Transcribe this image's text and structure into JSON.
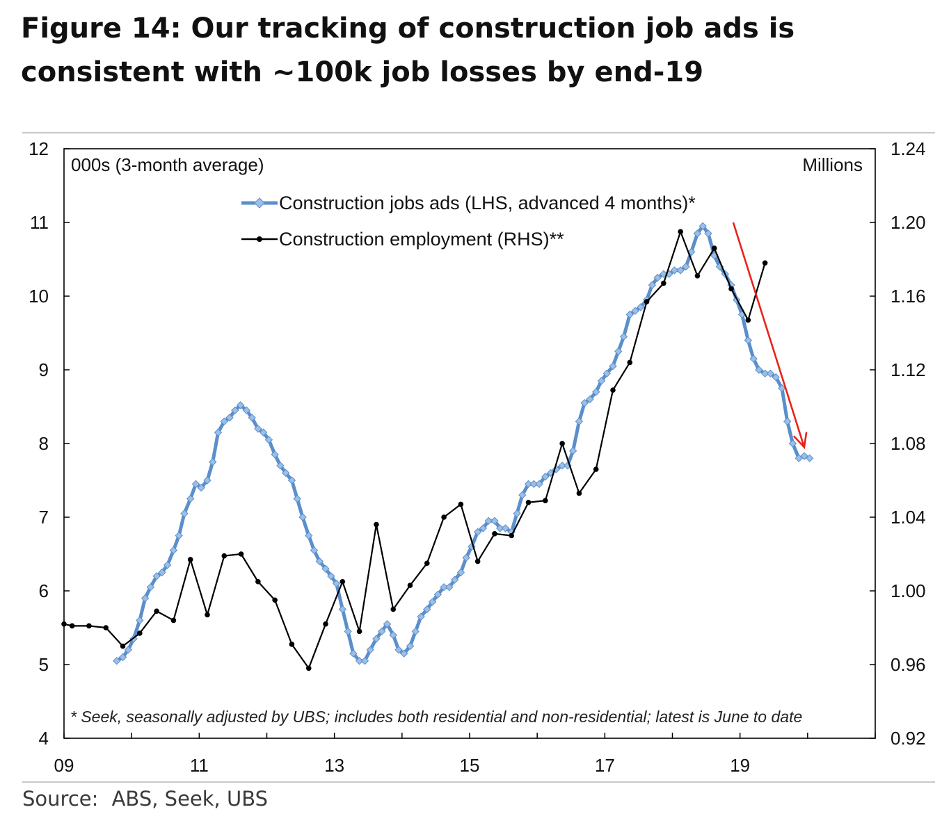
{
  "figure_label": "Figure 14:",
  "title_line1": "Our tracking of construction job ads is",
  "title_line2": "consistent with ~100k job losses by end-19",
  "source_label": "Source:",
  "source_text": "ABS, Seek, UBS",
  "colors": {
    "ads": "#5b8fcb",
    "ads_marker": "#9dbfe6",
    "employment": "#000000",
    "arrow": "#e8231a",
    "axis": "#000000"
  },
  "chart_data": {
    "type": "line",
    "left_unit": "000s (3-month average)",
    "right_unit": "Millions",
    "left_ylim": [
      4,
      12
    ],
    "right_ylim": [
      0.92,
      1.24
    ],
    "left_ticks": [
      "12",
      "11",
      "10",
      "9",
      "8",
      "7",
      "6",
      "5",
      "4"
    ],
    "right_ticks": [
      "1.24",
      "1.20",
      "1.16",
      "1.12",
      "1.08",
      "1.04",
      "1.00",
      "0.96",
      "0.92"
    ],
    "xlim": [
      2009.0,
      2021.0
    ],
    "x_ticks": [
      {
        "label": "09",
        "year": 2009
      },
      {
        "label": "11",
        "year": 2011
      },
      {
        "label": "13",
        "year": 2013
      },
      {
        "label": "15",
        "year": 2015
      },
      {
        "label": "17",
        "year": 2017
      },
      {
        "label": "19",
        "year": 2019
      }
    ],
    "series": [
      {
        "name": "Construction jobs ads (LHS, advanced 4 months)*",
        "axis": "left",
        "points": [
          [
            2009.78,
            5.05
          ],
          [
            2009.87,
            5.1
          ],
          [
            2009.95,
            5.2
          ],
          [
            2010.03,
            5.35
          ],
          [
            2010.12,
            5.6
          ],
          [
            2010.2,
            5.9
          ],
          [
            2010.28,
            6.05
          ],
          [
            2010.37,
            6.2
          ],
          [
            2010.45,
            6.25
          ],
          [
            2010.53,
            6.35
          ],
          [
            2010.62,
            6.55
          ],
          [
            2010.7,
            6.75
          ],
          [
            2010.78,
            7.05
          ],
          [
            2010.87,
            7.25
          ],
          [
            2010.95,
            7.45
          ],
          [
            2011.03,
            7.4
          ],
          [
            2011.12,
            7.5
          ],
          [
            2011.2,
            7.75
          ],
          [
            2011.28,
            8.15
          ],
          [
            2011.37,
            8.3
          ],
          [
            2011.45,
            8.35
          ],
          [
            2011.53,
            8.45
          ],
          [
            2011.61,
            8.52
          ],
          [
            2011.7,
            8.45
          ],
          [
            2011.78,
            8.35
          ],
          [
            2011.87,
            8.2
          ],
          [
            2011.95,
            8.15
          ],
          [
            2012.03,
            8.05
          ],
          [
            2012.12,
            7.85
          ],
          [
            2012.2,
            7.7
          ],
          [
            2012.28,
            7.6
          ],
          [
            2012.37,
            7.5
          ],
          [
            2012.45,
            7.25
          ],
          [
            2012.53,
            7.0
          ],
          [
            2012.62,
            6.75
          ],
          [
            2012.7,
            6.55
          ],
          [
            2012.78,
            6.4
          ],
          [
            2012.87,
            6.3
          ],
          [
            2012.95,
            6.2
          ],
          [
            2013.03,
            6.1
          ],
          [
            2013.12,
            5.75
          ],
          [
            2013.2,
            5.45
          ],
          [
            2013.28,
            5.15
          ],
          [
            2013.37,
            5.05
          ],
          [
            2013.45,
            5.05
          ],
          [
            2013.53,
            5.2
          ],
          [
            2013.62,
            5.35
          ],
          [
            2013.7,
            5.45
          ],
          [
            2013.78,
            5.55
          ],
          [
            2013.87,
            5.4
          ],
          [
            2013.95,
            5.2
          ],
          [
            2014.03,
            5.15
          ],
          [
            2014.12,
            5.25
          ],
          [
            2014.2,
            5.45
          ],
          [
            2014.28,
            5.65
          ],
          [
            2014.37,
            5.75
          ],
          [
            2014.45,
            5.85
          ],
          [
            2014.53,
            5.95
          ],
          [
            2014.62,
            6.05
          ],
          [
            2014.7,
            6.05
          ],
          [
            2014.78,
            6.15
          ],
          [
            2014.87,
            6.25
          ],
          [
            2014.95,
            6.45
          ],
          [
            2015.03,
            6.6
          ],
          [
            2015.12,
            6.8
          ],
          [
            2015.2,
            6.85
          ],
          [
            2015.28,
            6.95
          ],
          [
            2015.37,
            6.95
          ],
          [
            2015.45,
            6.85
          ],
          [
            2015.53,
            6.85
          ],
          [
            2015.62,
            6.8
          ],
          [
            2015.7,
            7.05
          ],
          [
            2015.78,
            7.3
          ],
          [
            2015.87,
            7.45
          ],
          [
            2015.95,
            7.45
          ],
          [
            2016.03,
            7.45
          ],
          [
            2016.12,
            7.55
          ],
          [
            2016.2,
            7.6
          ],
          [
            2016.28,
            7.65
          ],
          [
            2016.37,
            7.7
          ],
          [
            2016.45,
            7.7
          ],
          [
            2016.53,
            7.9
          ],
          [
            2016.62,
            8.3
          ],
          [
            2016.7,
            8.55
          ],
          [
            2016.78,
            8.6
          ],
          [
            2016.87,
            8.7
          ],
          [
            2016.95,
            8.85
          ],
          [
            2017.03,
            8.95
          ],
          [
            2017.12,
            9.05
          ],
          [
            2017.2,
            9.25
          ],
          [
            2017.28,
            9.45
          ],
          [
            2017.37,
            9.75
          ],
          [
            2017.45,
            9.8
          ],
          [
            2017.53,
            9.85
          ],
          [
            2017.62,
            9.95
          ],
          [
            2017.7,
            10.15
          ],
          [
            2017.78,
            10.25
          ],
          [
            2017.87,
            10.3
          ],
          [
            2017.95,
            10.3
          ],
          [
            2018.03,
            10.35
          ],
          [
            2018.12,
            10.35
          ],
          [
            2018.2,
            10.4
          ],
          [
            2018.28,
            10.6
          ],
          [
            2018.37,
            10.85
          ],
          [
            2018.45,
            10.95
          ],
          [
            2018.53,
            10.85
          ],
          [
            2018.62,
            10.55
          ],
          [
            2018.7,
            10.4
          ],
          [
            2018.78,
            10.3
          ],
          [
            2018.87,
            10.15
          ],
          [
            2018.95,
            9.95
          ],
          [
            2019.03,
            9.75
          ],
          [
            2019.12,
            9.4
          ],
          [
            2019.2,
            9.15
          ],
          [
            2019.28,
            9.0
          ],
          [
            2019.37,
            8.95
          ],
          [
            2019.45,
            8.95
          ],
          [
            2019.53,
            8.9
          ],
          [
            2019.62,
            8.75
          ],
          [
            2019.7,
            8.3
          ],
          [
            2019.78,
            8.0
          ],
          [
            2019.87,
            7.8
          ],
          [
            2019.95,
            7.83
          ],
          [
            2020.03,
            7.8
          ]
        ]
      },
      {
        "name": "Construction employment (RHS)**",
        "axis": "right",
        "points": [
          [
            2009.0,
            0.982
          ],
          [
            2009.12,
            0.981
          ],
          [
            2009.37,
            0.981
          ],
          [
            2009.62,
            0.98
          ],
          [
            2009.87,
            0.97
          ],
          [
            2010.12,
            0.977
          ],
          [
            2010.37,
            0.989
          ],
          [
            2010.62,
            0.984
          ],
          [
            2010.87,
            1.017
          ],
          [
            2011.12,
            0.987
          ],
          [
            2011.37,
            1.019
          ],
          [
            2011.62,
            1.02
          ],
          [
            2011.87,
            1.005
          ],
          [
            2012.12,
            0.995
          ],
          [
            2012.37,
            0.971
          ],
          [
            2012.62,
            0.958
          ],
          [
            2012.87,
            0.982
          ],
          [
            2013.12,
            1.005
          ],
          [
            2013.37,
            0.978
          ],
          [
            2013.62,
            1.036
          ],
          [
            2013.87,
            0.99
          ],
          [
            2014.12,
            1.003
          ],
          [
            2014.37,
            1.015
          ],
          [
            2014.62,
            1.04
          ],
          [
            2014.87,
            1.047
          ],
          [
            2015.12,
            1.016
          ],
          [
            2015.37,
            1.031
          ],
          [
            2015.62,
            1.03
          ],
          [
            2015.87,
            1.048
          ],
          [
            2016.12,
            1.049
          ],
          [
            2016.37,
            1.08
          ],
          [
            2016.62,
            1.053
          ],
          [
            2016.87,
            1.066
          ],
          [
            2017.12,
            1.109
          ],
          [
            2017.37,
            1.124
          ],
          [
            2017.62,
            1.157
          ],
          [
            2017.87,
            1.167
          ],
          [
            2018.12,
            1.195
          ],
          [
            2018.37,
            1.171
          ],
          [
            2018.62,
            1.186
          ],
          [
            2018.87,
            1.164
          ],
          [
            2019.12,
            1.147
          ],
          [
            2019.37,
            1.178
          ]
        ]
      }
    ],
    "annotation": {
      "type": "arrow",
      "from": [
        2018.9,
        11.0
      ],
      "to": [
        2019.95,
        7.95
      ]
    },
    "footnote": "* Seek, seasonally adjusted by UBS; includes both residential and non-residential; latest is June to date"
  }
}
